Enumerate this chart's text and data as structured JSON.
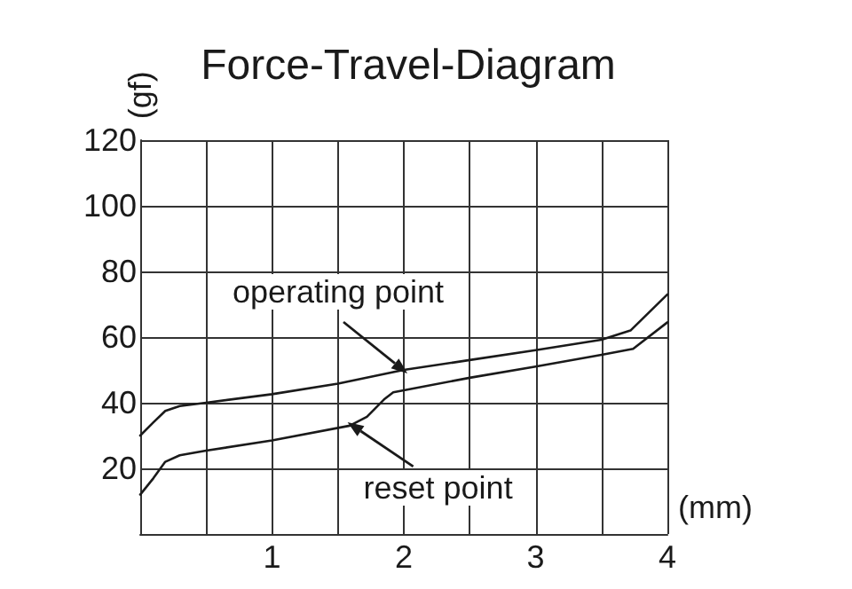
{
  "chart_data": {
    "type": "line",
    "title": "Force-Travel-Diagram",
    "xlabel": "(mm)",
    "ylabel": "(gf)",
    "xlim": [
      0,
      4
    ],
    "ylim": [
      0,
      120
    ],
    "xticks": [
      {
        "value": 0,
        "label": null
      },
      {
        "value": 0.5,
        "label": null
      },
      1,
      {
        "value": 1.5,
        "label": null
      },
      2,
      {
        "value": 2.5,
        "label": null
      },
      3,
      {
        "value": 3.5,
        "label": null
      },
      4
    ],
    "yticks": [
      {
        "value": 0,
        "label": null
      },
      20,
      40,
      60,
      80,
      100,
      120
    ],
    "grid": true,
    "marker": "none",
    "line_style": "solid",
    "series": [
      {
        "color": "#1a1a1a",
        "x": [
          0,
          0.1,
          0.19,
          0.3,
          0.5,
          1,
          1.5,
          2,
          2.5,
          3,
          3.5,
          3.72,
          4
        ],
        "values": [
          30,
          34,
          37.5,
          39,
          40,
          42.6,
          45.8,
          50,
          53,
          56,
          59.2,
          62,
          73
        ]
      },
      {
        "color": "#1a1a1a",
        "x": [
          0,
          0.1,
          0.19,
          0.3,
          0.5,
          1,
          1.59,
          1.72,
          1.85,
          1.92,
          2,
          2.5,
          3,
          3.5,
          3.74,
          4
        ],
        "values": [
          12,
          17,
          22,
          24,
          25.4,
          28.5,
          33,
          35.7,
          41,
          43.2,
          43.8,
          47.6,
          51,
          54.6,
          56.4,
          64.5
        ]
      }
    ],
    "annotations": [
      {
        "text": "operating point",
        "x": 2,
        "y": 50
      },
      {
        "text": "reset point",
        "x": 1.6,
        "y": 33
      }
    ]
  }
}
